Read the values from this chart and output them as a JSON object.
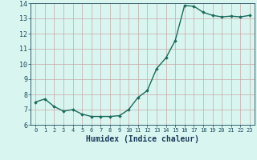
{
  "x": [
    0,
    1,
    2,
    3,
    4,
    5,
    6,
    7,
    8,
    9,
    10,
    11,
    12,
    13,
    14,
    15,
    16,
    17,
    18,
    19,
    20,
    21,
    22,
    23
  ],
  "y": [
    7.5,
    7.7,
    7.2,
    6.9,
    7.0,
    6.7,
    6.55,
    6.55,
    6.55,
    6.6,
    7.0,
    7.8,
    8.25,
    9.7,
    10.4,
    11.55,
    13.85,
    13.8,
    13.4,
    13.2,
    13.1,
    13.15,
    13.1,
    13.2
  ],
  "xlim": [
    -0.5,
    23.5
  ],
  "ylim": [
    6,
    14
  ],
  "yticks": [
    6,
    7,
    8,
    9,
    10,
    11,
    12,
    13,
    14
  ],
  "xticks": [
    0,
    1,
    2,
    3,
    4,
    5,
    6,
    7,
    8,
    9,
    10,
    11,
    12,
    13,
    14,
    15,
    16,
    17,
    18,
    19,
    20,
    21,
    22,
    23
  ],
  "xlabel": "Humidex (Indice chaleur)",
  "line_color": "#1a6b5a",
  "marker": "D",
  "marker_size": 1.8,
  "bg_color": "#d9f5f0",
  "grid_color": "#c8a8a8",
  "tick_color": "#1a4a5a",
  "label_color": "#1a3a5a",
  "line_width": 1.0
}
